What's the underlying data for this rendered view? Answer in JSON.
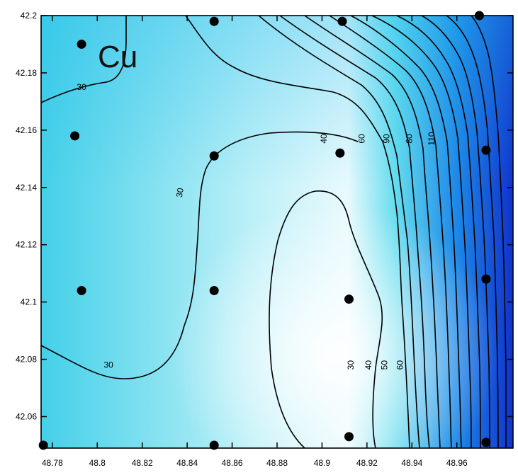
{
  "chart_data": {
    "type": "contour",
    "title": "Cu",
    "xlabel": "",
    "ylabel": "",
    "xlim": [
      48.775,
      48.985
    ],
    "ylim": [
      42.049,
      42.2
    ],
    "x_ticks": [
      "48.78",
      "48.8",
      "48.82",
      "48.84",
      "48.86",
      "48.88",
      "48.9",
      "48.92",
      "48.94",
      "48.96"
    ],
    "x_tick_values": [
      48.78,
      48.8,
      48.82,
      48.84,
      48.86,
      48.88,
      48.9,
      48.92,
      48.94,
      48.96
    ],
    "y_ticks": [
      "42.06",
      "42.08",
      "42.1",
      "42.12",
      "42.14",
      "42.16",
      "42.18",
      "42.2"
    ],
    "y_tick_values": [
      42.06,
      42.08,
      42.1,
      42.12,
      42.14,
      42.16,
      42.18,
      42.2
    ],
    "grid": false,
    "legend": "none",
    "colormap": {
      "low": "#ffffff",
      "mid": "#33ccee",
      "high": "#1133cc"
    },
    "contour_interval": 10,
    "contour_labels": [
      {
        "text": "30",
        "x": 48.793,
        "y": 42.174
      },
      {
        "text": "30",
        "x": 48.838,
        "y": 42.138
      },
      {
        "text": "30",
        "x": 48.805,
        "y": 42.077
      },
      {
        "text": "40",
        "x": 48.902,
        "y": 42.157
      },
      {
        "text": "60",
        "x": 48.919,
        "y": 42.157
      },
      {
        "text": "90",
        "x": 48.93,
        "y": 42.157
      },
      {
        "text": "80",
        "x": 48.94,
        "y": 42.157
      },
      {
        "text": "110",
        "x": 48.95,
        "y": 42.157
      },
      {
        "text": "30",
        "x": 48.914,
        "y": 42.078
      },
      {
        "text": "40",
        "x": 48.922,
        "y": 42.078
      },
      {
        "text": "50",
        "x": 48.929,
        "y": 42.078
      },
      {
        "text": "60",
        "x": 48.936,
        "y": 42.078
      }
    ],
    "sample_points": [
      {
        "x": 48.793,
        "y": 42.19
      },
      {
        "x": 48.852,
        "y": 42.198
      },
      {
        "x": 48.909,
        "y": 42.198
      },
      {
        "x": 48.97,
        "y": 42.2
      },
      {
        "x": 48.79,
        "y": 42.158
      },
      {
        "x": 48.852,
        "y": 42.151
      },
      {
        "x": 48.908,
        "y": 42.152
      },
      {
        "x": 48.973,
        "y": 42.153
      },
      {
        "x": 48.793,
        "y": 42.104
      },
      {
        "x": 48.852,
        "y": 42.104
      },
      {
        "x": 48.912,
        "y": 42.101
      },
      {
        "x": 48.973,
        "y": 42.108
      },
      {
        "x": 48.776,
        "y": 42.05
      },
      {
        "x": 48.852,
        "y": 42.05
      },
      {
        "x": 48.912,
        "y": 42.053
      },
      {
        "x": 48.973,
        "y": 42.051
      }
    ]
  }
}
